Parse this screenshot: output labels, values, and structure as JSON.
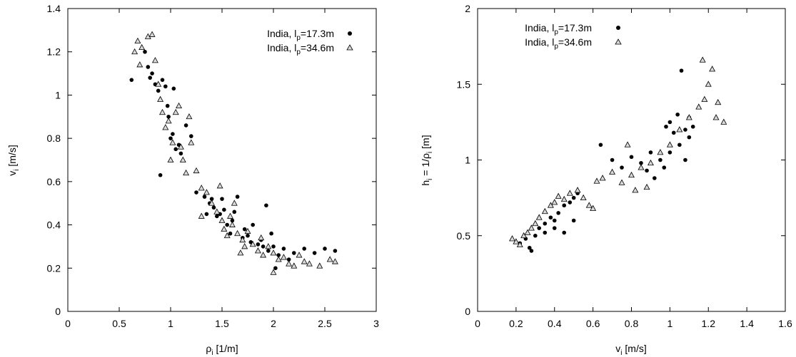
{
  "chart_data": [
    {
      "type": "scatter",
      "xlabel": {
        "main": "ρ",
        "sub": "i",
        "rest": " [1/m]"
      },
      "ylabel": {
        "main": "v",
        "sub": "i",
        "rest": " [m/s]"
      },
      "xlim": [
        0,
        3
      ],
      "ylim": [
        0,
        1.4
      ],
      "xticks": [
        "0",
        "0.5",
        "1",
        "1.5",
        "2",
        "2.5",
        "3"
      ],
      "yticks": [
        "0",
        "0.2",
        "0.4",
        "0.6",
        "0.8",
        "1",
        "1.2",
        "1.4"
      ],
      "legend_position": "top-right",
      "series": [
        {
          "name": "India, lp=17.3m",
          "label": {
            "pre": "India, l",
            "sub": "p",
            "post": "=17.3m"
          },
          "marker": "circle",
          "points": [
            [
              0.62,
              1.07
            ],
            [
              0.75,
              1.2
            ],
            [
              0.78,
              1.13
            ],
            [
              0.8,
              1.08
            ],
            [
              0.82,
              1.1
            ],
            [
              0.85,
              1.05
            ],
            [
              0.88,
              1.02
            ],
            [
              0.9,
              0.63
            ],
            [
              0.92,
              1.07
            ],
            [
              0.95,
              1.04
            ],
            [
              0.97,
              0.95
            ],
            [
              0.98,
              0.9
            ],
            [
              1.0,
              0.8
            ],
            [
              1.02,
              0.82
            ],
            [
              1.03,
              1.03
            ],
            [
              1.05,
              0.75
            ],
            [
              1.08,
              0.77
            ],
            [
              1.1,
              0.73
            ],
            [
              1.15,
              0.86
            ],
            [
              1.2,
              0.81
            ],
            [
              1.25,
              0.55
            ],
            [
              1.33,
              0.53
            ],
            [
              1.35,
              0.45
            ],
            [
              1.38,
              0.5
            ],
            [
              1.4,
              0.52
            ],
            [
              1.42,
              0.48
            ],
            [
              1.45,
              0.44
            ],
            [
              1.48,
              0.45
            ],
            [
              1.5,
              0.52
            ],
            [
              1.52,
              0.47
            ],
            [
              1.55,
              0.4
            ],
            [
              1.58,
              0.36
            ],
            [
              1.6,
              0.42
            ],
            [
              1.62,
              0.46
            ],
            [
              1.65,
              0.53
            ],
            [
              1.7,
              0.34
            ],
            [
              1.72,
              0.38
            ],
            [
              1.75,
              0.35
            ],
            [
              1.78,
              0.32
            ],
            [
              1.8,
              0.4
            ],
            [
              1.85,
              0.31
            ],
            [
              1.88,
              0.33
            ],
            [
              1.9,
              0.3
            ],
            [
              1.93,
              0.49
            ],
            [
              1.95,
              0.28
            ],
            [
              1.98,
              0.36
            ],
            [
              2.0,
              0.3
            ],
            [
              2.05,
              0.26
            ],
            [
              2.1,
              0.29
            ],
            [
              2.15,
              0.24
            ],
            [
              2.2,
              0.27
            ],
            [
              2.3,
              0.29
            ],
            [
              2.4,
              0.27
            ],
            [
              2.5,
              0.29
            ],
            [
              2.6,
              0.28
            ],
            [
              2.02,
              0.2
            ]
          ]
        },
        {
          "name": "India, lp=34.6m",
          "label": {
            "pre": "India, l",
            "sub": "p",
            "post": "=34.6m"
          },
          "marker": "triangle",
          "points": [
            [
              0.65,
              1.2
            ],
            [
              0.68,
              1.25
            ],
            [
              0.72,
              1.22
            ],
            [
              0.78,
              1.27
            ],
            [
              0.82,
              1.28
            ],
            [
              0.85,
              1.16
            ],
            [
              0.88,
              1.05
            ],
            [
              0.9,
              0.98
            ],
            [
              0.92,
              0.92
            ],
            [
              0.95,
              0.85
            ],
            [
              0.98,
              0.88
            ],
            [
              1.0,
              0.7
            ],
            [
              1.02,
              0.78
            ],
            [
              1.05,
              0.92
            ],
            [
              1.08,
              0.95
            ],
            [
              1.1,
              0.76
            ],
            [
              1.12,
              0.7
            ],
            [
              1.15,
              0.64
            ],
            [
              1.18,
              0.9
            ],
            [
              1.2,
              0.78
            ],
            [
              1.25,
              0.65
            ],
            [
              1.3,
              0.57
            ],
            [
              1.35,
              0.55
            ],
            [
              1.4,
              0.5
            ],
            [
              1.45,
              0.46
            ],
            [
              1.5,
              0.42
            ],
            [
              1.52,
              0.38
            ],
            [
              1.55,
              0.35
            ],
            [
              1.58,
              0.44
            ],
            [
              1.6,
              0.4
            ],
            [
              1.65,
              0.36
            ],
            [
              1.7,
              0.33
            ],
            [
              1.72,
              0.3
            ],
            [
              1.75,
              0.37
            ],
            [
              1.8,
              0.31
            ],
            [
              1.85,
              0.28
            ],
            [
              1.88,
              0.34
            ],
            [
              1.9,
              0.26
            ],
            [
              1.95,
              0.3
            ],
            [
              2.0,
              0.27
            ],
            [
              2.05,
              0.24
            ],
            [
              2.1,
              0.25
            ],
            [
              2.15,
              0.22
            ],
            [
              2.2,
              0.21
            ],
            [
              2.25,
              0.26
            ],
            [
              2.3,
              0.23
            ],
            [
              2.35,
              0.22
            ],
            [
              2.45,
              0.21
            ],
            [
              2.55,
              0.24
            ],
            [
              2.6,
              0.23
            ],
            [
              0.7,
              1.14
            ],
            [
              1.3,
              0.44
            ],
            [
              1.48,
              0.58
            ],
            [
              1.62,
              0.5
            ],
            [
              1.68,
              0.27
            ],
            [
              2.0,
              0.18
            ]
          ]
        }
      ]
    },
    {
      "type": "scatter",
      "xlabel": {
        "main": "v",
        "sub": "i",
        "rest": " [m/s]"
      },
      "ylabel": {
        "main": "h",
        "sub": "i",
        "rest": " = 1/ρ",
        "sub2": "i",
        "rest2": " [m]"
      },
      "xlim": [
        0,
        1.6
      ],
      "ylim": [
        0,
        2
      ],
      "xticks": [
        "0",
        "0.2",
        "0.4",
        "0.6",
        "0.8",
        "1",
        "1.2",
        "1.4",
        "1.6"
      ],
      "yticks": [
        "0",
        "0.5",
        "1",
        "1.5",
        "2"
      ],
      "legend_position": "top-left",
      "series": [
        {
          "name": "India, lp=17.3m",
          "label": {
            "pre": "India, l",
            "sub": "p",
            "post": "=17.3m"
          },
          "marker": "circle",
          "points": [
            [
              0.22,
              0.45
            ],
            [
              0.25,
              0.48
            ],
            [
              0.27,
              0.42
            ],
            [
              0.28,
              0.4
            ],
            [
              0.3,
              0.5
            ],
            [
              0.32,
              0.55
            ],
            [
              0.35,
              0.58
            ],
            [
              0.38,
              0.62
            ],
            [
              0.4,
              0.6
            ],
            [
              0.42,
              0.65
            ],
            [
              0.45,
              0.7
            ],
            [
              0.48,
              0.72
            ],
            [
              0.5,
              0.75
            ],
            [
              0.52,
              0.78
            ],
            [
              0.35,
              0.52
            ],
            [
              0.4,
              0.55
            ],
            [
              0.45,
              0.52
            ],
            [
              0.5,
              0.6
            ],
            [
              0.64,
              1.1
            ],
            [
              0.7,
              1.0
            ],
            [
              0.75,
              0.95
            ],
            [
              0.8,
              1.02
            ],
            [
              0.85,
              0.98
            ],
            [
              0.88,
              0.93
            ],
            [
              0.9,
              1.05
            ],
            [
              0.95,
              1.0
            ],
            [
              0.98,
              1.22
            ],
            [
              1.0,
              1.25
            ],
            [
              1.02,
              1.18
            ],
            [
              1.04,
              1.3
            ],
            [
              1.06,
              1.59
            ],
            [
              1.08,
              1.2
            ],
            [
              1.1,
              1.28
            ],
            [
              1.12,
              1.22
            ],
            [
              0.92,
              0.88
            ],
            [
              0.97,
              0.95
            ],
            [
              1.0,
              1.05
            ],
            [
              1.05,
              1.1
            ],
            [
              1.08,
              1.0
            ],
            [
              1.1,
              1.15
            ]
          ]
        },
        {
          "name": "India, lp=34.6m",
          "label": {
            "pre": "India, l",
            "sub": "p",
            "post": "=34.6m"
          },
          "marker": "triangle",
          "points": [
            [
              0.18,
              0.48
            ],
            [
              0.2,
              0.46
            ],
            [
              0.22,
              0.44
            ],
            [
              0.24,
              0.5
            ],
            [
              0.26,
              0.52
            ],
            [
              0.28,
              0.55
            ],
            [
              0.3,
              0.58
            ],
            [
              0.32,
              0.62
            ],
            [
              0.35,
              0.66
            ],
            [
              0.38,
              0.7
            ],
            [
              0.4,
              0.72
            ],
            [
              0.42,
              0.76
            ],
            [
              0.45,
              0.74
            ],
            [
              0.48,
              0.78
            ],
            [
              0.52,
              0.8
            ],
            [
              0.55,
              0.75
            ],
            [
              0.58,
              0.7
            ],
            [
              0.6,
              0.68
            ],
            [
              0.65,
              0.88
            ],
            [
              0.7,
              0.92
            ],
            [
              0.75,
              0.85
            ],
            [
              0.8,
              0.9
            ],
            [
              0.85,
              0.95
            ],
            [
              0.9,
              0.98
            ],
            [
              0.95,
              1.05
            ],
            [
              1.0,
              1.1
            ],
            [
              1.05,
              1.2
            ],
            [
              1.1,
              1.28
            ],
            [
              1.15,
              1.35
            ],
            [
              1.18,
              1.4
            ],
            [
              1.2,
              1.5
            ],
            [
              1.17,
              1.66
            ],
            [
              1.22,
              1.6
            ],
            [
              1.25,
              1.38
            ],
            [
              1.28,
              1.25
            ],
            [
              1.24,
              1.28
            ],
            [
              0.62,
              0.86
            ],
            [
              0.88,
              0.82
            ],
            [
              0.78,
              1.1
            ],
            [
              0.82,
              0.8
            ]
          ]
        }
      ]
    }
  ]
}
